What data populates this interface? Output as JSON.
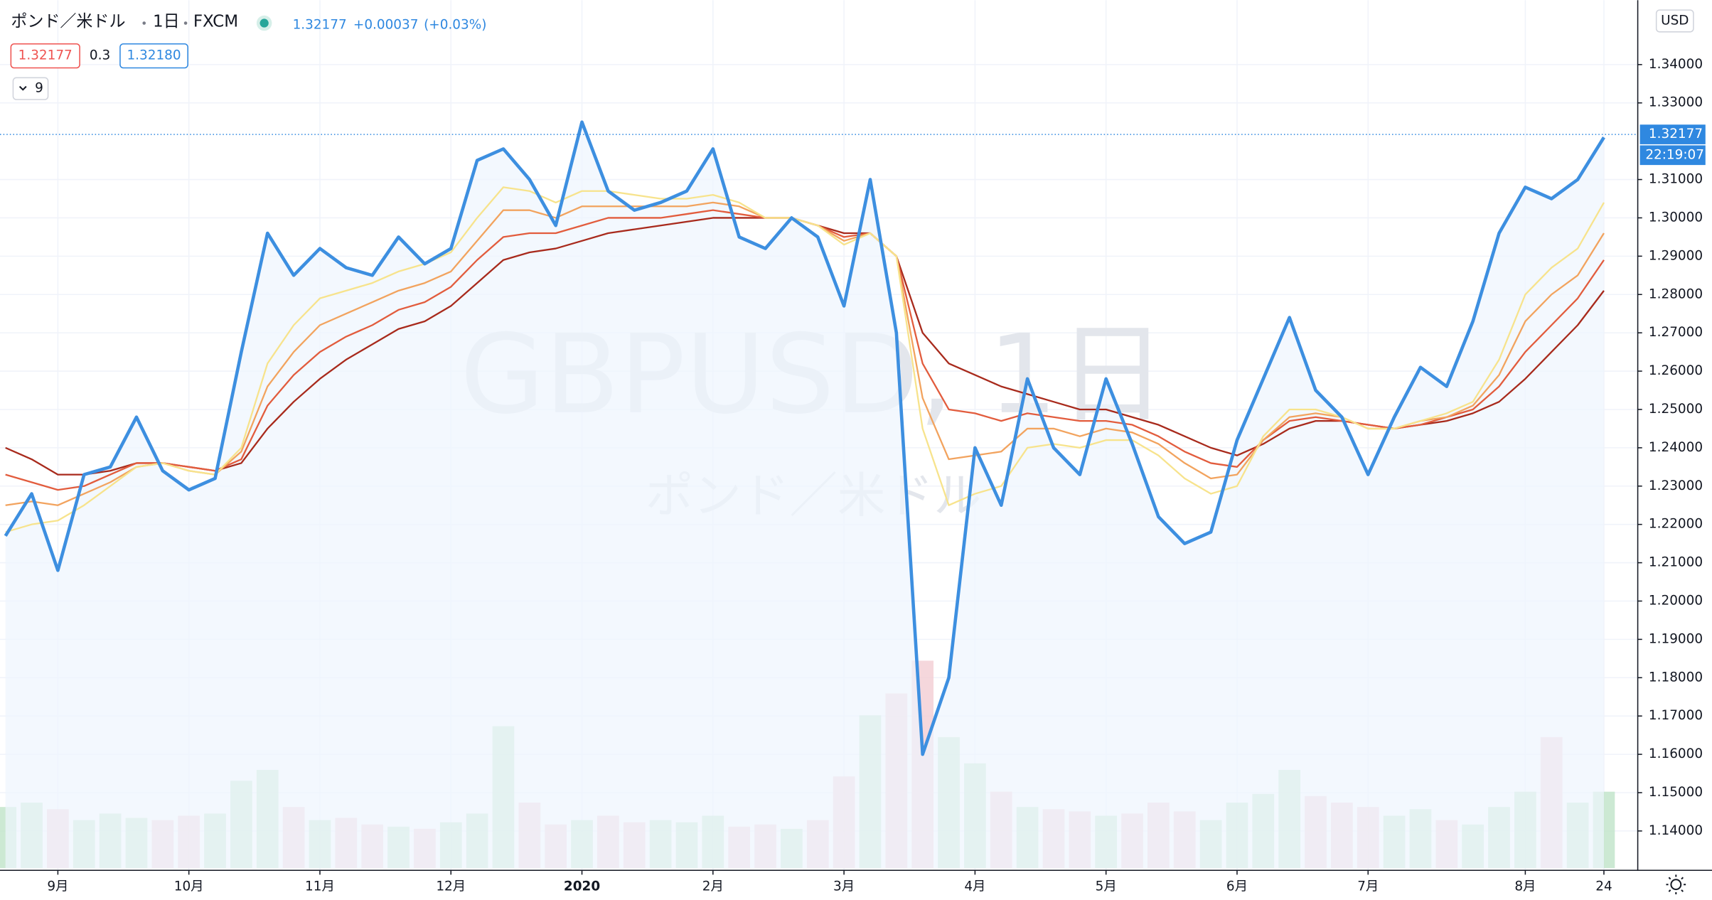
{
  "header": {
    "symbol": "ポンド／米ドル",
    "interval": "1日",
    "exchange": "FXCM",
    "last": "1.32177",
    "change": "+0.00037",
    "change_pct": "(+0.03%)",
    "bid": "1.32177",
    "spread": "0.3",
    "ask": "1.32180",
    "indicator_count": "9",
    "currency": "USD"
  },
  "watermark": {
    "title": "GBPUSD, 1日",
    "subtitle": "ポンド／米ドル"
  },
  "chart_data": {
    "type": "line",
    "categories": [
      null,
      null,
      "9月",
      null,
      null,
      null,
      null,
      "10月",
      null,
      null,
      null,
      null,
      "11月",
      null,
      null,
      null,
      null,
      "12月",
      null,
      null,
      null,
      null,
      "2020",
      null,
      null,
      null,
      null,
      "2月",
      null,
      null,
      null,
      null,
      "3月",
      null,
      null,
      null,
      null,
      "4月",
      null,
      null,
      null,
      null,
      "5月",
      null,
      null,
      null,
      null,
      "6月",
      null,
      null,
      null,
      null,
      "7月",
      null,
      null,
      null,
      null,
      null,
      "8月",
      null,
      null,
      "24"
    ],
    "series": [
      {
        "color": "#a82a1c",
        "values": [
          1.24,
          1.237,
          1.233,
          1.233,
          1.234,
          1.236,
          1.236,
          1.235,
          1.234,
          1.236,
          1.245,
          1.252,
          1.258,
          1.263,
          1.267,
          1.271,
          1.273,
          1.277,
          1.283,
          1.289,
          1.291,
          1.292,
          1.294,
          1.296,
          1.297,
          1.298,
          1.299,
          1.3,
          1.3,
          1.3,
          1.3,
          1.298,
          1.296,
          1.296,
          1.29,
          1.27,
          1.262,
          1.259,
          1.256,
          1.254,
          1.252,
          1.25,
          1.25,
          1.248,
          1.246,
          1.243,
          1.24,
          1.238,
          1.241,
          1.245,
          1.247,
          1.247,
          1.246,
          1.245,
          1.246,
          1.247,
          1.249,
          1.252,
          1.258,
          1.265,
          1.272,
          1.281
        ]
      },
      {
        "color": "#e25c3d",
        "values": [
          1.233,
          1.231,
          1.229,
          1.23,
          1.233,
          1.236,
          1.236,
          1.235,
          1.234,
          1.237,
          1.251,
          1.259,
          1.265,
          1.269,
          1.272,
          1.276,
          1.278,
          1.282,
          1.289,
          1.295,
          1.296,
          1.296,
          1.298,
          1.3,
          1.3,
          1.3,
          1.301,
          1.302,
          1.301,
          1.3,
          1.3,
          1.298,
          1.295,
          1.296,
          1.29,
          1.262,
          1.25,
          1.249,
          1.247,
          1.249,
          1.248,
          1.247,
          1.247,
          1.246,
          1.243,
          1.239,
          1.236,
          1.235,
          1.242,
          1.247,
          1.248,
          1.247,
          1.246,
          1.245,
          1.246,
          1.248,
          1.25,
          1.256,
          1.265,
          1.272,
          1.279,
          1.289
        ]
      },
      {
        "color": "#f2a35e",
        "values": [
          1.225,
          1.226,
          1.225,
          1.228,
          1.231,
          1.235,
          1.236,
          1.234,
          1.233,
          1.239,
          1.256,
          1.265,
          1.272,
          1.275,
          1.278,
          1.281,
          1.283,
          1.286,
          1.294,
          1.302,
          1.302,
          1.3,
          1.303,
          1.303,
          1.303,
          1.303,
          1.303,
          1.304,
          1.303,
          1.3,
          1.3,
          1.298,
          1.294,
          1.296,
          1.29,
          1.253,
          1.237,
          1.238,
          1.239,
          1.245,
          1.245,
          1.243,
          1.245,
          1.244,
          1.241,
          1.236,
          1.232,
          1.233,
          1.242,
          1.248,
          1.249,
          1.248,
          1.245,
          1.245,
          1.247,
          1.248,
          1.251,
          1.259,
          1.273,
          1.28,
          1.285,
          1.296
        ]
      },
      {
        "color": "#f7e38c",
        "values": [
          1.218,
          1.22,
          1.221,
          1.225,
          1.23,
          1.235,
          1.236,
          1.234,
          1.233,
          1.24,
          1.262,
          1.272,
          1.279,
          1.281,
          1.283,
          1.286,
          1.288,
          1.291,
          1.3,
          1.308,
          1.307,
          1.304,
          1.307,
          1.307,
          1.306,
          1.305,
          1.305,
          1.306,
          1.304,
          1.3,
          1.3,
          1.298,
          1.293,
          1.296,
          1.29,
          1.245,
          1.225,
          1.228,
          1.23,
          1.24,
          1.241,
          1.24,
          1.242,
          1.242,
          1.238,
          1.232,
          1.228,
          1.23,
          1.243,
          1.25,
          1.25,
          1.248,
          1.245,
          1.245,
          1.247,
          1.249,
          1.252,
          1.263,
          1.28,
          1.287,
          1.292,
          1.304
        ]
      },
      {
        "color": "#3d8fe0",
        "fill": "#eef5fd",
        "values": [
          1.217,
          1.228,
          1.208,
          1.233,
          1.235,
          1.248,
          1.234,
          1.229,
          1.232,
          1.265,
          1.296,
          1.285,
          1.292,
          1.287,
          1.285,
          1.295,
          1.288,
          1.292,
          1.315,
          1.318,
          1.31,
          1.298,
          1.325,
          1.307,
          1.302,
          1.304,
          1.307,
          1.318,
          1.295,
          1.292,
          1.3,
          1.295,
          1.277,
          1.31,
          1.27,
          1.16,
          1.18,
          1.24,
          1.225,
          1.258,
          1.24,
          1.233,
          1.258,
          1.241,
          1.222,
          1.215,
          1.218,
          1.242,
          1.258,
          1.274,
          1.255,
          1.248,
          1.233,
          1.248,
          1.261,
          1.256,
          1.273,
          1.296,
          1.308,
          1.305,
          1.31,
          1.321
        ]
      }
    ],
    "volume": {
      "up_color": "#bfe3c8",
      "down_color": "#f2cdd3",
      "values": [
        28,
        30,
        27,
        22,
        25,
        23,
        22,
        24,
        25,
        40,
        45,
        28,
        22,
        23,
        20,
        19,
        18,
        21,
        25,
        65,
        30,
        20,
        22,
        24,
        21,
        22,
        21,
        24,
        19,
        20,
        18,
        22,
        42,
        70,
        80,
        95,
        60,
        48,
        35,
        28,
        27,
        26,
        24,
        25,
        30,
        26,
        22,
        30,
        34,
        45,
        33,
        30,
        28,
        24,
        27,
        22,
        20,
        28,
        35,
        60,
        30,
        35
      ]
    },
    "ylim": [
      1.1303,
      1.3568
    ],
    "yticks": [
      {
        "value": 1.14,
        "label": "1.14000"
      },
      {
        "value": 1.15,
        "label": "1.15000"
      },
      {
        "value": 1.16,
        "label": "1.16000"
      },
      {
        "value": 1.17,
        "label": "1.17000"
      },
      {
        "value": 1.18,
        "label": "1.18000"
      },
      {
        "value": 1.19,
        "label": "1.19000"
      },
      {
        "value": 1.2,
        "label": "1.20000"
      },
      {
        "value": 1.21,
        "label": "1.21000"
      },
      {
        "value": 1.22,
        "label": "1.22000"
      },
      {
        "value": 1.23,
        "label": "1.23000"
      },
      {
        "value": 1.24,
        "label": "1.24000"
      },
      {
        "value": 1.25,
        "label": "1.25000"
      },
      {
        "value": 1.26,
        "label": "1.26000"
      },
      {
        "value": 1.27,
        "label": "1.27000"
      },
      {
        "value": 1.28,
        "label": "1.28000"
      },
      {
        "value": 1.29,
        "label": "1.29000"
      },
      {
        "value": 1.3,
        "label": "1.30000"
      },
      {
        "value": 1.31,
        "label": "1.31000"
      },
      {
        "value": 1.33,
        "label": "1.33000"
      },
      {
        "value": 1.34,
        "label": "1.34000"
      }
    ],
    "last_price": 1.32177,
    "last_price_color": "#2f88e0",
    "countdown": "22:19:07",
    "grid": true
  }
}
